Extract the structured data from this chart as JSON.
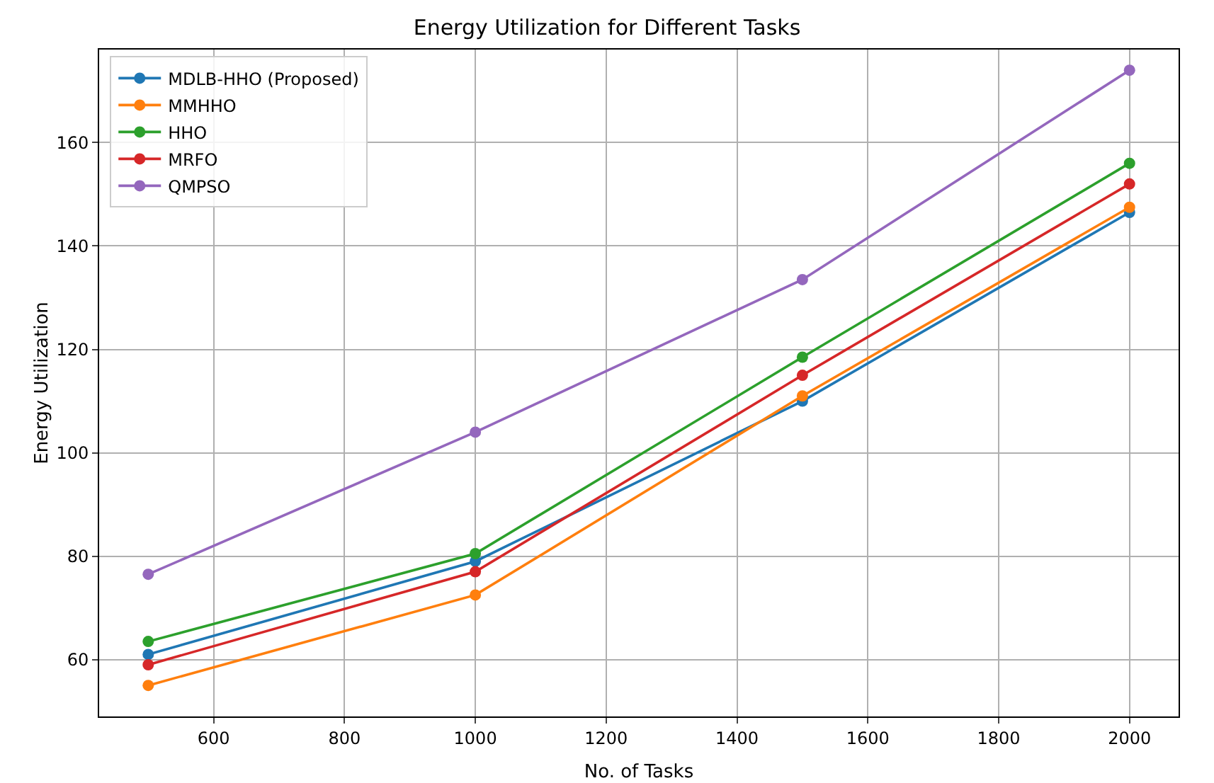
{
  "chart_data": {
    "type": "line",
    "title": "Energy Utilization for Different Tasks",
    "xlabel": "No. of Tasks",
    "ylabel": "Energy Utilization",
    "x": [
      500,
      1000,
      1500,
      2000
    ],
    "series": [
      {
        "name": "MDLB-HHO (Proposed)",
        "color": "#1f77b4",
        "values": [
          61,
          79,
          110,
          146.5
        ]
      },
      {
        "name": "MMHHO",
        "color": "#ff7f0e",
        "values": [
          55,
          72.5,
          111,
          147.5
        ]
      },
      {
        "name": "HHO",
        "color": "#2ca02c",
        "values": [
          63.5,
          80.5,
          118.5,
          156
        ]
      },
      {
        "name": "MRFO",
        "color": "#d62728",
        "values": [
          59,
          77,
          115,
          152
        ]
      },
      {
        "name": "QMPSO",
        "color": "#9467bd",
        "values": [
          76.5,
          104,
          133.5,
          174
        ]
      }
    ],
    "xlim": [
      425,
      2075
    ],
    "xticks": [
      600,
      800,
      1000,
      1200,
      1400,
      1600,
      1800,
      2000
    ],
    "ylim": [
      49,
      178
    ],
    "yticks": [
      60,
      80,
      100,
      120,
      140,
      160
    ],
    "grid": true,
    "legend": "top left",
    "marker": "circle",
    "line_style": "solid"
  }
}
